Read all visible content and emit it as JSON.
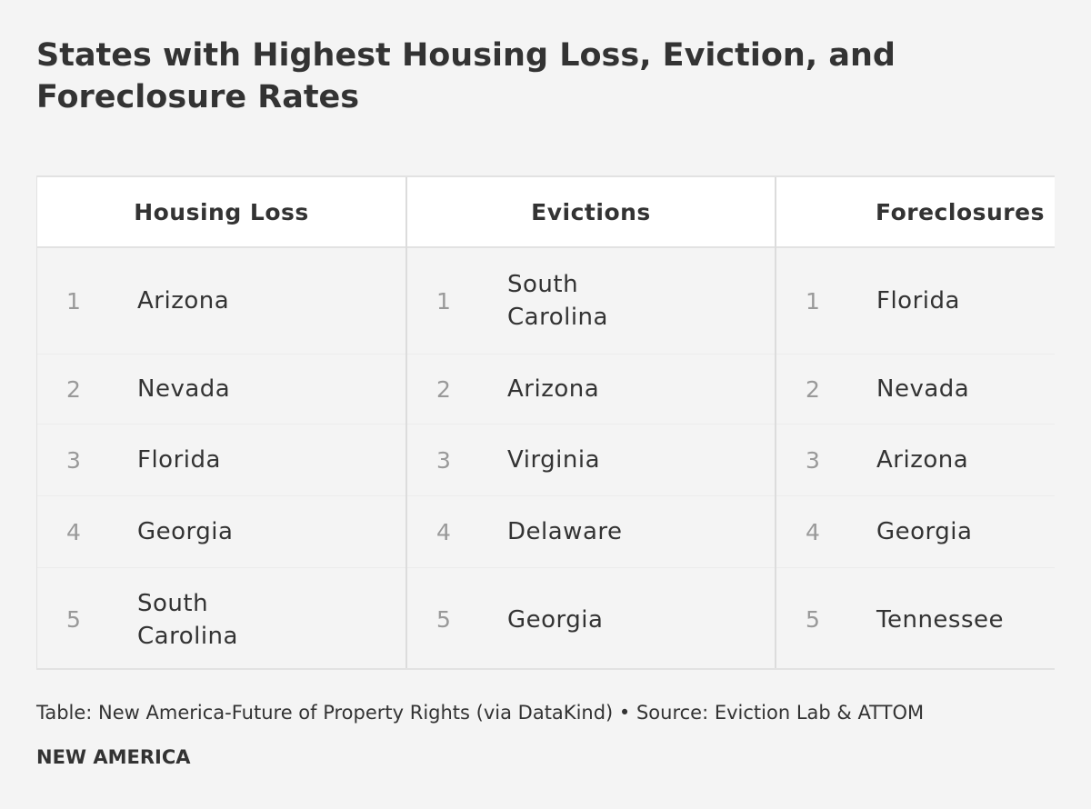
{
  "header": {
    "title": "States with Highest Housing Loss, Eviction, and Foreclosure Rates"
  },
  "table": {
    "groups": [
      {
        "header": "Housing Loss",
        "rows": [
          {
            "rank": "1",
            "state": "Arizona"
          },
          {
            "rank": "2",
            "state": "Nevada"
          },
          {
            "rank": "3",
            "state": "Florida"
          },
          {
            "rank": "4",
            "state": "Georgia"
          },
          {
            "rank": "5",
            "state": "South Carolina"
          }
        ]
      },
      {
        "header": "Evictions",
        "rows": [
          {
            "rank": "1",
            "state": "South Carolina"
          },
          {
            "rank": "2",
            "state": "Arizona"
          },
          {
            "rank": "3",
            "state": "Virginia"
          },
          {
            "rank": "4",
            "state": "Delaware"
          },
          {
            "rank": "5",
            "state": "Georgia"
          }
        ]
      },
      {
        "header": "Foreclosures",
        "rows": [
          {
            "rank": "1",
            "state": "Florida"
          },
          {
            "rank": "2",
            "state": "Nevada"
          },
          {
            "rank": "3",
            "state": "Arizona"
          },
          {
            "rank": "4",
            "state": "Georgia"
          },
          {
            "rank": "5",
            "state": "Tennessee"
          }
        ]
      }
    ]
  },
  "footer": {
    "source": "Table: New America-Future of Property Rights (via DataKind) • Source: Eviction Lab & ATTOM",
    "brand": "NEW AMERICA"
  }
}
